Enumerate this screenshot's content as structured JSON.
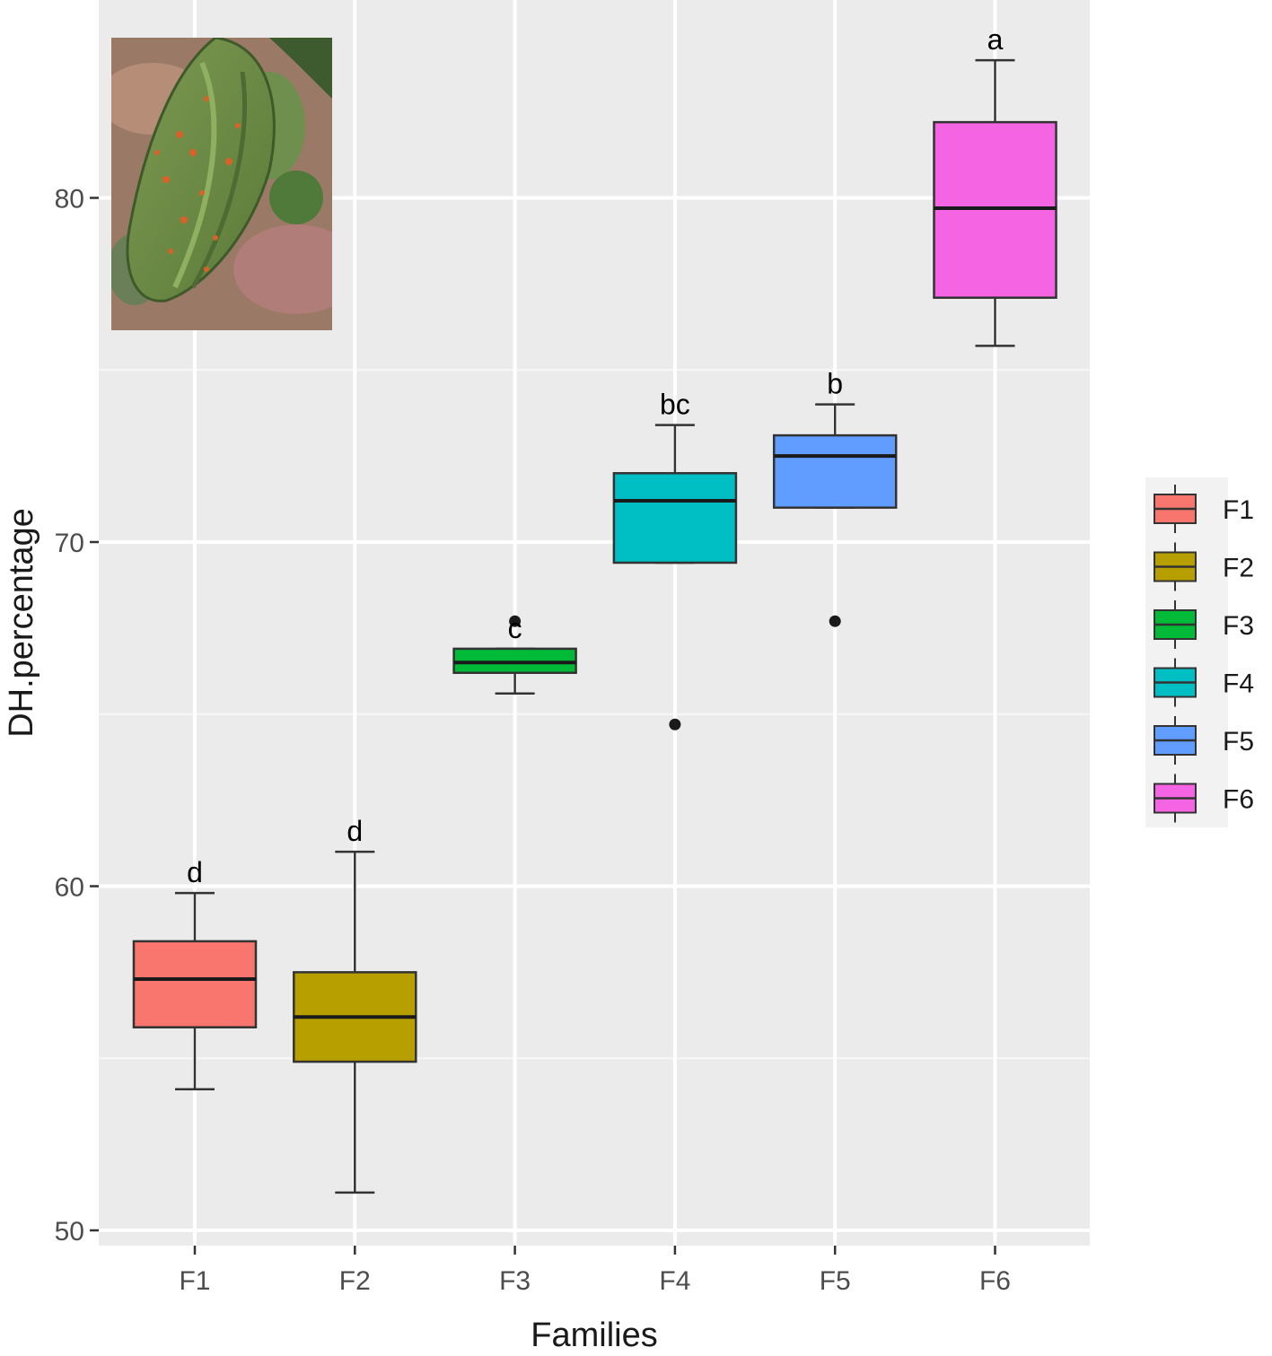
{
  "chart_data": {
    "type": "boxplot",
    "title": "",
    "xlabel": "Families",
    "ylabel": "DH.percentage",
    "categories": [
      "F1",
      "F2",
      "F3",
      "F4",
      "F5",
      "F6"
    ],
    "ylim": [
      49.6,
      85.2
    ],
    "yticks": [
      50,
      60,
      70,
      80
    ],
    "grid": true,
    "legend": {
      "position": "right",
      "entries": [
        "F1",
        "F2",
        "F3",
        "F4",
        "F5",
        "F6"
      ]
    },
    "boxes": [
      {
        "name": "F1",
        "whisker_low": 54.1,
        "q1": 55.9,
        "median": 57.3,
        "q3": 58.4,
        "whisker_high": 59.8,
        "outliers": [],
        "letter": "d",
        "color": "#F8766D"
      },
      {
        "name": "F2",
        "whisker_low": 51.1,
        "q1": 54.9,
        "median": 56.2,
        "q3": 57.5,
        "whisker_high": 61.0,
        "outliers": [],
        "letter": "d",
        "color": "#B79F00"
      },
      {
        "name": "F3",
        "whisker_low": 65.6,
        "q1": 66.2,
        "median": 66.5,
        "q3": 66.9,
        "whisker_high": 66.9,
        "outliers": [
          67.7
        ],
        "letter": "c",
        "color": "#00BA38"
      },
      {
        "name": "F4",
        "whisker_low": 69.4,
        "q1": 69.4,
        "median": 71.2,
        "q3": 72.0,
        "whisker_high": 73.4,
        "outliers": [
          64.7
        ],
        "letter": "bc",
        "color": "#00BFC4"
      },
      {
        "name": "F5",
        "whisker_low": 71.0,
        "q1": 71.0,
        "median": 72.5,
        "q3": 73.1,
        "whisker_high": 74.0,
        "outliers": [
          67.7
        ],
        "letter": "b",
        "color": "#619CFF"
      },
      {
        "name": "F6",
        "whisker_low": 75.7,
        "q1": 77.1,
        "median": 79.7,
        "q3": 82.2,
        "whisker_high": 84.0,
        "outliers": [],
        "letter": "a",
        "color": "#F564E3"
      }
    ]
  },
  "inset_photo": {
    "subject": "cacao-pod-with-insects-icon"
  }
}
